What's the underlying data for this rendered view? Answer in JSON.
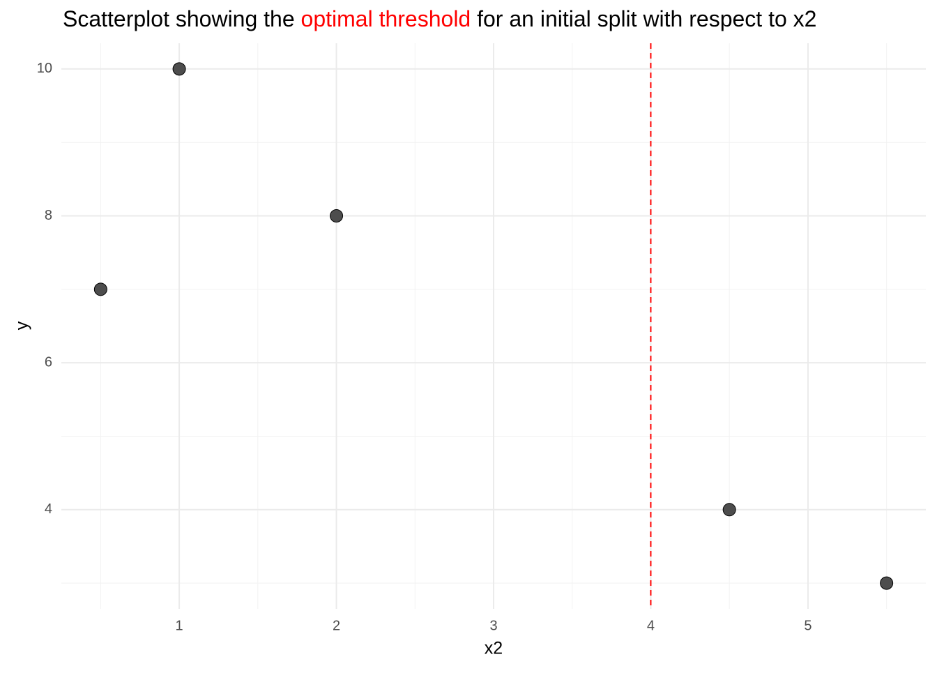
{
  "chart_data": {
    "type": "scatter",
    "title_parts": [
      {
        "text": "Scatterplot showing the ",
        "color": "#000000"
      },
      {
        "text": "optimal threshold",
        "color": "#ff0000"
      },
      {
        "text": " for an initial split with respect to x2",
        "color": "#000000"
      }
    ],
    "x_label": "x2",
    "y_label": "y",
    "x": [
      0.5,
      1,
      2,
      4.5,
      5.5
    ],
    "values": [
      7,
      10,
      8,
      4,
      3
    ],
    "color": "#4d4d4d",
    "threshold": {
      "x": 4,
      "color": "#ff0000",
      "dashed": true
    },
    "xlim": [
      0.25,
      5.75
    ],
    "ylim": [
      2.65,
      10.35
    ],
    "xticks": [
      1,
      2,
      3,
      4,
      5
    ],
    "yticks": [
      4,
      6,
      8,
      10
    ],
    "minor_xticks": [
      0.5,
      1.5,
      2.5,
      3.5,
      4.5,
      5.5
    ],
    "minor_yticks": [
      3,
      5,
      7,
      9
    ],
    "grid": true
  }
}
